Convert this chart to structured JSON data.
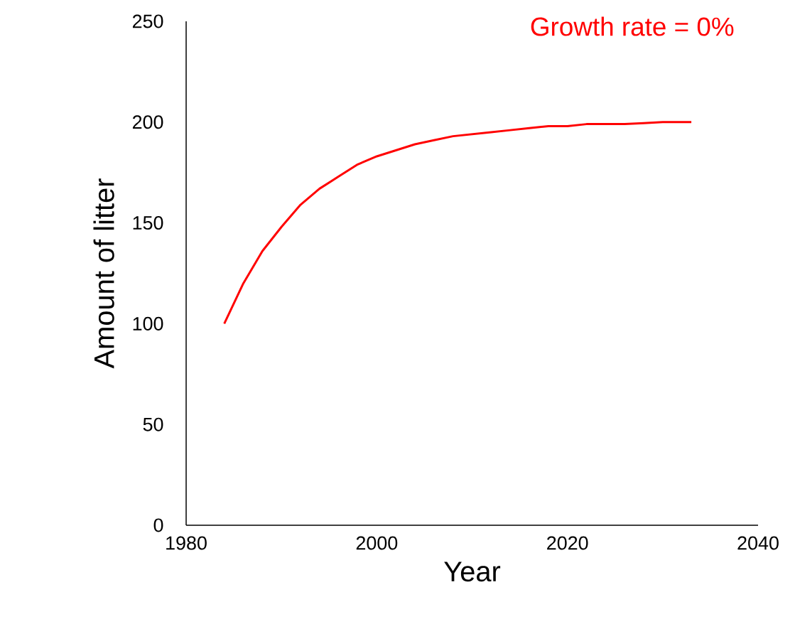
{
  "chart_data": {
    "type": "line",
    "xlabel": "Year",
    "ylabel": "Amount of litter",
    "annotations": [
      "Growth rate = 0%"
    ],
    "x": [
      1984,
      1986,
      1988,
      1990,
      1992,
      1994,
      1996,
      1998,
      2000,
      2002,
      2004,
      2006,
      2008,
      2010,
      2012,
      2014,
      2016,
      2018,
      2020,
      2022,
      2024,
      2026,
      2028,
      2030,
      2033
    ],
    "series": [
      {
        "color": "#ff0000",
        "values": [
          100,
          120,
          136,
          148,
          159,
          167,
          173,
          179,
          183,
          186,
          189,
          191,
          193,
          194,
          195,
          196,
          197,
          198,
          198,
          199,
          199,
          199,
          199.5,
          200,
          200
        ]
      }
    ],
    "xlim": [
      1980,
      2040
    ],
    "ylim": [
      0,
      250
    ],
    "xticks": [
      1980,
      2000,
      2020,
      2040
    ],
    "yticks": [
      0,
      50,
      100,
      150,
      200,
      250
    ],
    "grid": false,
    "marker": "none",
    "line_style": "solid"
  }
}
